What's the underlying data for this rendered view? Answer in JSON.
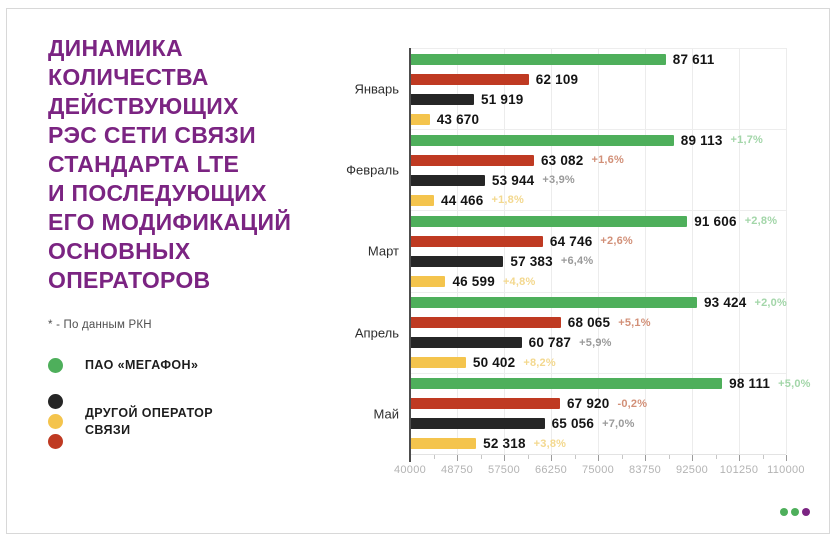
{
  "title": {
    "text": "ДИНАМИКА\nКОЛИЧЕСТВА\nДЕЙСТВУЮЩИХ\nРЭС СЕТИ СВЯЗИ\nСТАНДАРТА LTE\nИ ПОСЛЕДУЮЩИХ\nЕГО МОДИФИКАЦИЙ\nОСНОВНЫХ\nОПЕРАТОРОВ"
  },
  "footnote": {
    "text": "* - По данным РКН"
  },
  "colors": {
    "green": "#4eaf5b",
    "red": "#bf3a22",
    "black": "#262626",
    "yellow": "#f4c44d",
    "purple": "#7b2482",
    "green_light": "#a3d6a9",
    "red_light": "#d29078",
    "black_light": "#9a9a9a",
    "yellow_light": "#f3d88e"
  },
  "legend": {
    "items": [
      {
        "label": "ПАО «МЕГАФОН»",
        "dot_colors": [
          "green"
        ]
      },
      {
        "label": "ДРУГОЙ ОПЕРАТОР\nСВЯЗИ",
        "dot_colors": [
          "black",
          "yellow",
          "red"
        ]
      }
    ]
  },
  "chart_data": {
    "type": "bar",
    "orientation": "horizontal",
    "grouped": true,
    "categories": [
      "Январь",
      "Февраль",
      "Март",
      "Апрель",
      "Май"
    ],
    "series": [
      {
        "name": "ПАО «МЕГАФОН»",
        "color_key": "green",
        "values": [
          87611,
          89113,
          91606,
          93424,
          98111
        ],
        "labels": [
          "87 611",
          "89 113",
          "91 606",
          "93 424",
          "98 111"
        ],
        "pct": [
          "",
          "+1,7%",
          "+2,8%",
          "+2,0%",
          "+5,0%"
        ]
      },
      {
        "name": "ДРУГОЙ ОПЕРАТОР СВЯЗИ",
        "color_key": "red",
        "values": [
          62109,
          63082,
          64746,
          68065,
          67920
        ],
        "labels": [
          "62 109",
          "63 082",
          "64 746",
          "68 065",
          "67 920"
        ],
        "pct": [
          "",
          "+1,6%",
          "+2,6%",
          "+5,1%",
          "-0,2%"
        ]
      },
      {
        "name": "ДРУГОЙ ОПЕРАТОР СВЯЗИ",
        "color_key": "black",
        "values": [
          51919,
          53944,
          57383,
          60787,
          65056
        ],
        "labels": [
          "51 919",
          "53 944",
          "57 383",
          "60 787",
          "65 056"
        ],
        "pct": [
          "",
          "+3,9%",
          "+6,4%",
          "+5,9%",
          "+7,0%"
        ]
      },
      {
        "name": "ДРУГОЙ ОПЕРАТОР СВЯЗИ",
        "color_key": "yellow",
        "values": [
          43670,
          44466,
          46599,
          50402,
          52318
        ],
        "labels": [
          "43 670",
          "44 466",
          "46 599",
          "50 402",
          "52 318"
        ],
        "pct": [
          "",
          "+1,8%",
          "+4,8%",
          "+8,2%",
          "+3,8%"
        ]
      }
    ],
    "xlim": [
      40000,
      110000
    ],
    "xticks": [
      40000,
      48750,
      57500,
      66250,
      75000,
      83750,
      92500,
      101250,
      110000
    ],
    "xtick_labels": [
      "40000",
      "48750",
      "57500",
      "66250",
      "75000",
      "83750",
      "92500",
      "101250",
      "110000"
    ],
    "grid": "vertical major gridlines + horizontal group separators",
    "legend_position": "left"
  },
  "pagination": {
    "dots": [
      "green",
      "green",
      "purple"
    ]
  }
}
